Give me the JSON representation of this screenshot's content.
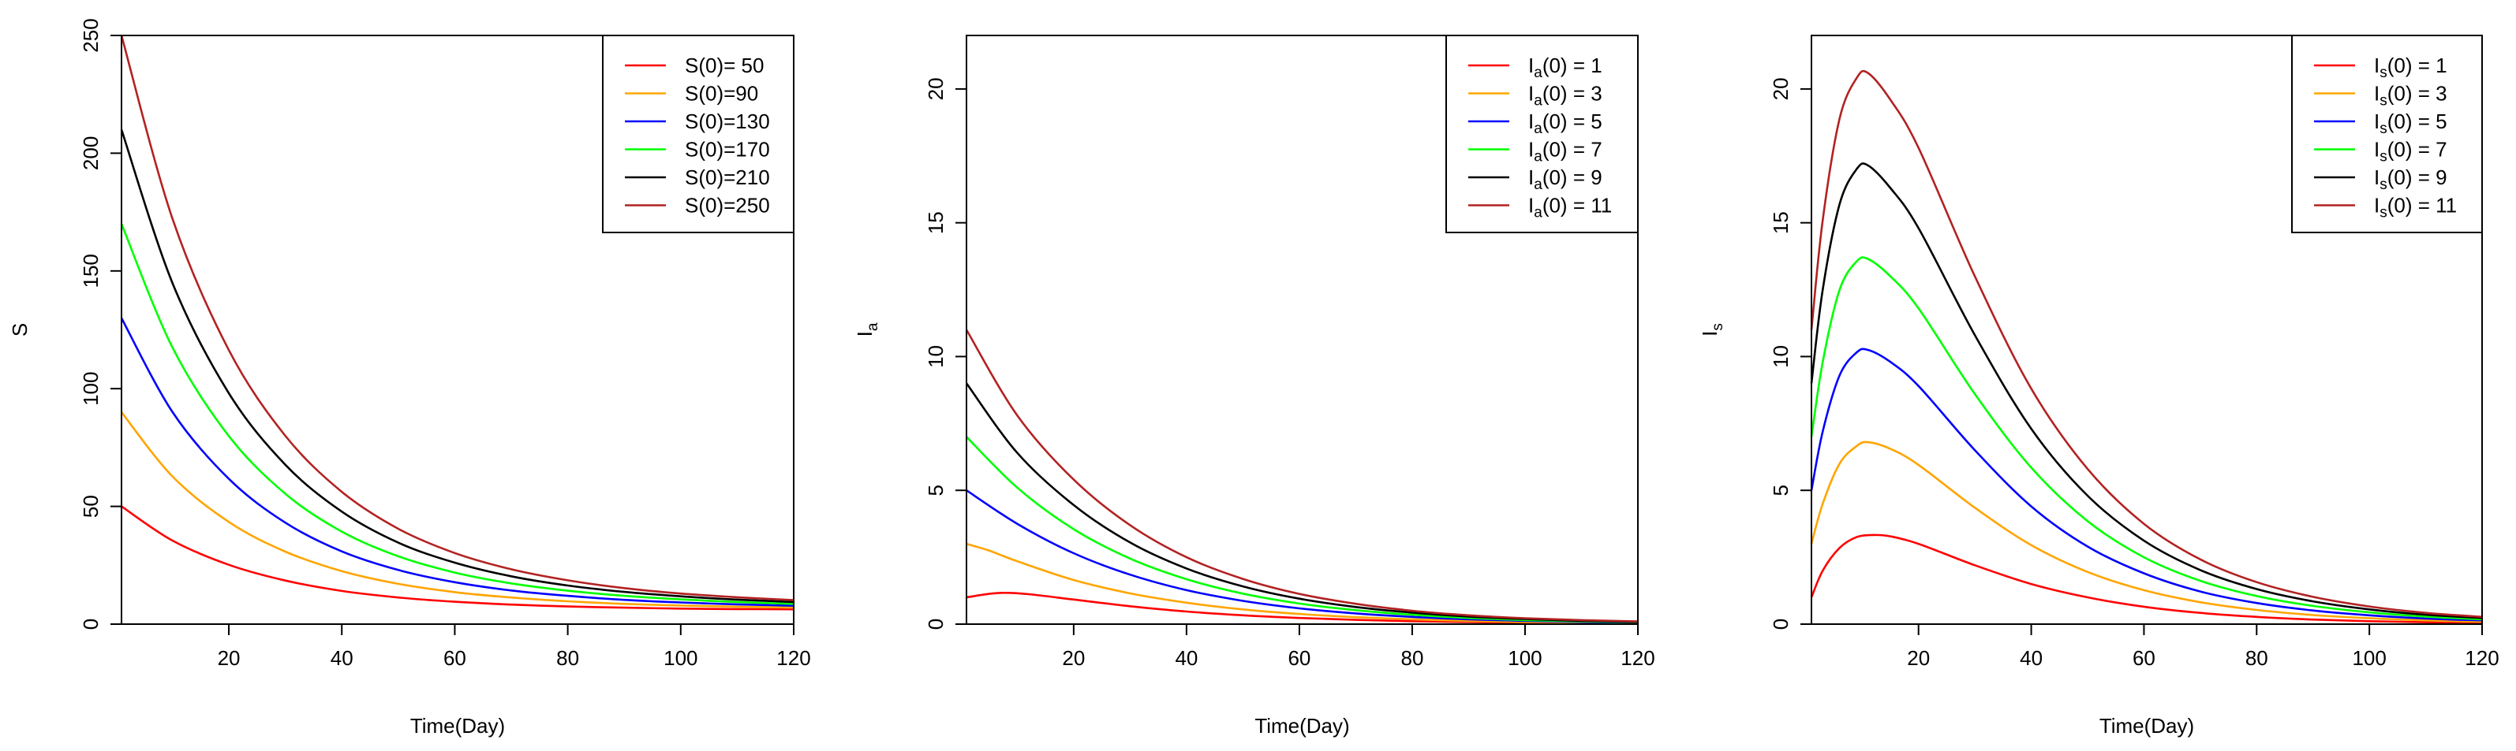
{
  "chart_data": [
    {
      "type": "line",
      "title": "",
      "xlabel": "Time(Day)",
      "ylabel": {
        "main": "S",
        "sub": ""
      },
      "xlim": [
        1,
        120
      ],
      "ylim": [
        0,
        250
      ],
      "xticks": [
        20,
        40,
        60,
        80,
        100,
        120
      ],
      "yticks": [
        0,
        50,
        100,
        150,
        200,
        250
      ],
      "legend_position": "top-right",
      "series": [
        {
          "name": "S(0)= 50",
          "legend": {
            "pre": "S(0)= 50",
            "sub": "",
            "post": ""
          },
          "color": "#ff0000",
          "x": [
            1,
            10,
            20,
            30,
            40,
            50,
            60,
            70,
            80,
            90,
            100,
            110,
            120
          ],
          "y": [
            50,
            35.5,
            25.2,
            18.5,
            14.1,
            11.3,
            9.5,
            8.3,
            7.5,
            7.0,
            6.6,
            6.4,
            6.3
          ]
        },
        {
          "name": "S(0)=90",
          "legend": {
            "pre": "S(0)=90",
            "sub": "",
            "post": ""
          },
          "color": "#ffa500",
          "x": [
            1,
            10,
            20,
            30,
            40,
            50,
            60,
            70,
            80,
            90,
            100,
            110,
            120
          ],
          "y": [
            90,
            62.8,
            43.4,
            30.8,
            22.5,
            17.1,
            13.6,
            11.3,
            9.7,
            8.6,
            7.9,
            7.4,
            7.0
          ]
        },
        {
          "name": "S(0)=130",
          "legend": {
            "pre": "S(0)=130",
            "sub": "",
            "post": ""
          },
          "color": "#0000ff",
          "x": [
            1,
            10,
            20,
            30,
            40,
            50,
            60,
            70,
            80,
            90,
            100,
            110,
            120
          ],
          "y": [
            130,
            90.2,
            61.7,
            43.1,
            30.9,
            23.0,
            17.8,
            14.3,
            12.0,
            10.3,
            9.2,
            8.4,
            7.8
          ]
        },
        {
          "name": "S(0)=170",
          "legend": {
            "pre": "S(0)=170",
            "sub": "",
            "post": ""
          },
          "color": "#00ff00",
          "x": [
            1,
            10,
            20,
            30,
            40,
            50,
            60,
            70,
            80,
            90,
            100,
            110,
            120
          ],
          "y": [
            170,
            117.6,
            79.9,
            55.4,
            39.3,
            28.8,
            21.9,
            17.3,
            14.2,
            12.0,
            10.5,
            9.4,
            8.6
          ]
        },
        {
          "name": "S(0)=210",
          "legend": {
            "pre": "S(0)=210",
            "sub": "",
            "post": ""
          },
          "color": "#000000",
          "x": [
            1,
            10,
            20,
            30,
            40,
            50,
            60,
            70,
            80,
            90,
            100,
            110,
            120
          ],
          "y": [
            210,
            145,
            98.1,
            67.7,
            47.8,
            34.6,
            26.1,
            20.3,
            16.4,
            13.7,
            11.8,
            10.4,
            9.4
          ]
        },
        {
          "name": "S(0)=250",
          "legend": {
            "pre": "S(0)=250",
            "sub": "",
            "post": ""
          },
          "color": "#b22222",
          "x": [
            1,
            10,
            20,
            30,
            40,
            50,
            60,
            70,
            80,
            90,
            100,
            110,
            120
          ],
          "y": [
            250,
            172.4,
            116.4,
            80.0,
            56.2,
            40.5,
            30.2,
            23.3,
            18.6,
            15.3,
            13.0,
            11.4,
            10.2
          ]
        }
      ]
    },
    {
      "type": "line",
      "title": "",
      "xlabel": "Time(Day)",
      "ylabel": {
        "main": "I",
        "sub": "a"
      },
      "xlim": [
        1,
        120
      ],
      "ylim": [
        0,
        22
      ],
      "xticks": [
        20,
        40,
        60,
        80,
        100,
        120
      ],
      "yticks": [
        0,
        5,
        10,
        15,
        20
      ],
      "legend_position": "top-right",
      "series": [
        {
          "name": "Ia(0) = 1",
          "legend": {
            "pre": "I",
            "sub": "a",
            "post": "(0) = 1"
          },
          "color": "#ff0000",
          "x": [
            1,
            5,
            8,
            12,
            20,
            30,
            40,
            50,
            60,
            70,
            80,
            90,
            100,
            110,
            120
          ],
          "y": [
            1.0,
            1.13,
            1.17,
            1.12,
            0.92,
            0.67,
            0.47,
            0.33,
            0.23,
            0.16,
            0.11,
            0.08,
            0.05,
            0.04,
            0.03
          ]
        },
        {
          "name": "Ia(0) = 3",
          "legend": {
            "pre": "I",
            "sub": "a",
            "post": "(0) = 3"
          },
          "color": "#ffa500",
          "x": [
            1,
            5,
            10,
            20,
            30,
            40,
            50,
            60,
            70,
            80,
            90,
            100,
            110,
            120
          ],
          "y": [
            3.0,
            2.75,
            2.35,
            1.65,
            1.15,
            0.8,
            0.55,
            0.38,
            0.26,
            0.18,
            0.12,
            0.08,
            0.06,
            0.04
          ]
        },
        {
          "name": "Ia(0) = 5",
          "legend": {
            "pre": "I",
            "sub": "a",
            "post": "(0) = 5"
          },
          "color": "#0000ff",
          "x": [
            1,
            10,
            20,
            30,
            40,
            50,
            60,
            70,
            80,
            90,
            100,
            110,
            120
          ],
          "y": [
            5.0,
            3.75,
            2.65,
            1.85,
            1.27,
            0.87,
            0.59,
            0.4,
            0.27,
            0.18,
            0.12,
            0.08,
            0.05
          ]
        },
        {
          "name": "Ia(0) = 7",
          "legend": {
            "pre": "I",
            "sub": "a",
            "post": "(0) = 7"
          },
          "color": "#00ff00",
          "x": [
            1,
            10,
            20,
            30,
            40,
            50,
            60,
            70,
            80,
            90,
            100,
            110,
            120
          ],
          "y": [
            7.0,
            5.1,
            3.55,
            2.45,
            1.68,
            1.14,
            0.77,
            0.52,
            0.35,
            0.23,
            0.15,
            0.1,
            0.07
          ]
        },
        {
          "name": "Ia(0) = 9",
          "legend": {
            "pre": "I",
            "sub": "a",
            "post": "(0) = 9"
          },
          "color": "#000000",
          "x": [
            1,
            10,
            20,
            30,
            40,
            50,
            60,
            70,
            80,
            90,
            100,
            110,
            120
          ],
          "y": [
            9.0,
            6.4,
            4.45,
            3.05,
            2.08,
            1.41,
            0.95,
            0.64,
            0.43,
            0.28,
            0.19,
            0.12,
            0.08
          ]
        },
        {
          "name": "Ia(0) = 11",
          "legend": {
            "pre": "I",
            "sub": "a",
            "post": "(0) = 11"
          },
          "color": "#b22222",
          "x": [
            1,
            10,
            20,
            30,
            40,
            50,
            60,
            70,
            80,
            90,
            100,
            110,
            120
          ],
          "y": [
            11.0,
            7.8,
            5.4,
            3.7,
            2.5,
            1.69,
            1.13,
            0.76,
            0.5,
            0.33,
            0.22,
            0.15,
            0.1
          ]
        }
      ]
    },
    {
      "type": "line",
      "title": "",
      "xlabel": "Time(Day)",
      "ylabel": {
        "main": "I",
        "sub": "s"
      },
      "xlim": [
        1,
        120
      ],
      "ylim": [
        0,
        22
      ],
      "xticks": [
        20,
        40,
        60,
        80,
        100,
        120
      ],
      "yticks": [
        0,
        5,
        10,
        15,
        20
      ],
      "legend_position": "top-right",
      "series": [
        {
          "name": "Is(0) = 1",
          "legend": {
            "pre": "I",
            "sub": "s",
            "post": "(0) = 1"
          },
          "color": "#ff0000",
          "x": [
            1,
            3,
            6,
            9,
            12,
            15,
            20,
            30,
            40,
            50,
            60,
            70,
            80,
            90,
            100,
            110,
            120
          ],
          "y": [
            1.0,
            2.0,
            2.85,
            3.25,
            3.33,
            3.28,
            3.0,
            2.2,
            1.5,
            1.0,
            0.65,
            0.42,
            0.27,
            0.17,
            0.11,
            0.07,
            0.05
          ]
        },
        {
          "name": "Is(0) = 3",
          "legend": {
            "pre": "I",
            "sub": "s",
            "post": "(0) = 3"
          },
          "color": "#ffa500",
          "x": [
            1,
            3,
            6,
            9,
            11,
            15,
            20,
            30,
            40,
            50,
            60,
            70,
            80,
            90,
            100,
            110,
            120
          ],
          "y": [
            3.0,
            4.5,
            6.0,
            6.65,
            6.8,
            6.55,
            5.95,
            4.35,
            2.95,
            1.95,
            1.27,
            0.82,
            0.53,
            0.34,
            0.22,
            0.14,
            0.09
          ]
        },
        {
          "name": "Is(0) = 5",
          "legend": {
            "pre": "I",
            "sub": "s",
            "post": "(0) = 5"
          },
          "color": "#0000ff",
          "x": [
            1,
            3,
            6,
            9,
            11,
            15,
            20,
            30,
            40,
            50,
            60,
            70,
            80,
            90,
            100,
            110,
            120
          ],
          "y": [
            5.0,
            7.2,
            9.3,
            10.15,
            10.25,
            9.8,
            8.9,
            6.5,
            4.4,
            2.9,
            1.9,
            1.22,
            0.79,
            0.51,
            0.33,
            0.21,
            0.14
          ]
        },
        {
          "name": "Is(0) = 7",
          "legend": {
            "pre": "I",
            "sub": "s",
            "post": "(0) = 7"
          },
          "color": "#00ff00",
          "x": [
            1,
            3,
            6,
            9,
            11,
            15,
            20,
            30,
            40,
            50,
            60,
            70,
            80,
            90,
            100,
            110,
            120
          ],
          "y": [
            7.0,
            9.8,
            12.5,
            13.55,
            13.65,
            13.0,
            11.8,
            8.6,
            5.85,
            3.85,
            2.5,
            1.62,
            1.05,
            0.68,
            0.44,
            0.28,
            0.18
          ]
        },
        {
          "name": "Is(0) = 9",
          "legend": {
            "pre": "I",
            "sub": "s",
            "post": "(0) = 9"
          },
          "color": "#000000",
          "x": [
            1,
            3,
            6,
            9,
            11,
            15,
            20,
            30,
            40,
            50,
            60,
            70,
            80,
            90,
            100,
            110,
            120
          ],
          "y": [
            9.0,
            12.5,
            15.7,
            17.0,
            17.15,
            16.3,
            14.8,
            10.8,
            7.3,
            4.8,
            3.12,
            2.02,
            1.31,
            0.85,
            0.55,
            0.35,
            0.23
          ]
        },
        {
          "name": "Is(0) = 11",
          "legend": {
            "pre": "I",
            "sub": "s",
            "post": "(0) = 11"
          },
          "color": "#b22222",
          "x": [
            1,
            3,
            6,
            9,
            11,
            15,
            20,
            30,
            40,
            50,
            60,
            70,
            80,
            90,
            100,
            110,
            120
          ],
          "y": [
            11.0,
            15.1,
            18.9,
            20.4,
            20.6,
            19.6,
            17.8,
            13.0,
            8.8,
            5.8,
            3.75,
            2.42,
            1.57,
            1.02,
            0.66,
            0.42,
            0.27
          ]
        }
      ]
    }
  ]
}
